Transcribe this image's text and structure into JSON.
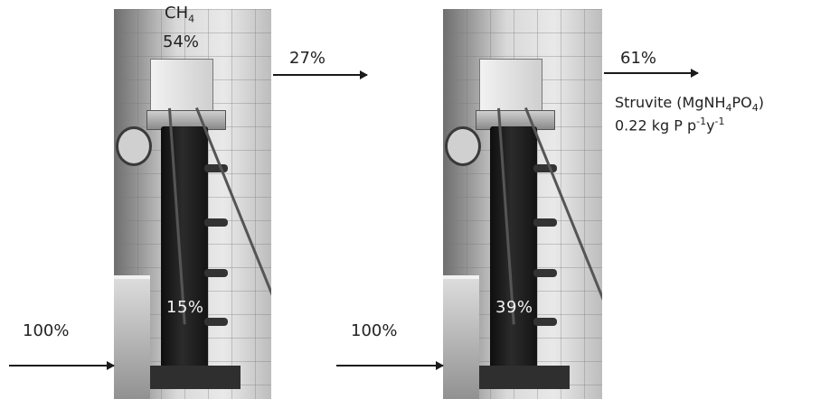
{
  "left_panel": {
    "gas_label_main": "CH",
    "gas_label_sub": "4",
    "gas_pct": "54%",
    "in_column_pct": "15%",
    "output_pct": "27%",
    "input_pct": "100%"
  },
  "right_panel": {
    "in_column_pct": "39%",
    "output_pct": "61%",
    "input_pct": "100%",
    "product_name": "Struvite (MgNH",
    "product_sub1": "4",
    "product_mid": "PO",
    "product_sub2": "4",
    "product_end": ")",
    "rate_text": "0.22 kg P p",
    "rate_sup1": "-1",
    "rate_mid": "y",
    "rate_sup2": "-1"
  }
}
